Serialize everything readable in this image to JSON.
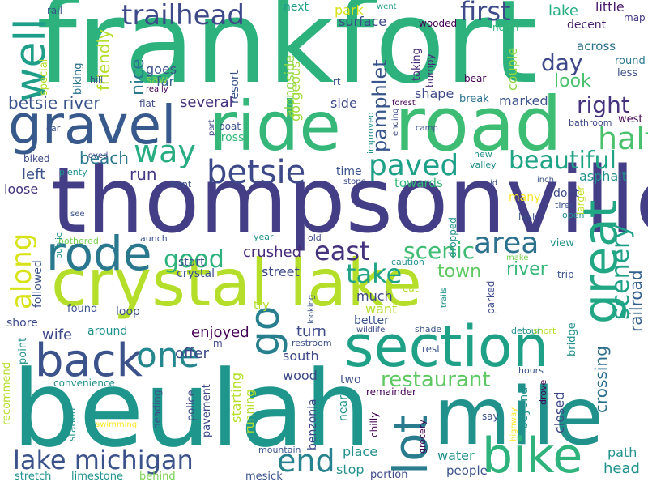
{
  "words": [
    {
      "text": "frankfort",
      "color": "#2db27d"
    },
    {
      "text": "thompsonville",
      "color": "#433e85"
    },
    {
      "text": "crystal lake",
      "color": "#b5de2b"
    },
    {
      "text": "beulah",
      "color": "#1f968b"
    },
    {
      "text": "road",
      "color": "#3dbc74"
    },
    {
      "text": "ride",
      "color": "#35b779"
    },
    {
      "text": "mile",
      "color": "#21918c"
    },
    {
      "text": "section",
      "color": "#1fa187"
    },
    {
      "text": "gravel",
      "color": "#38598c"
    },
    {
      "text": "rode",
      "color": "#2a788e"
    },
    {
      "text": "great",
      "color": "#22a785"
    },
    {
      "text": "bike",
      "color": "#2eb37c"
    },
    {
      "text": "back",
      "color": "#3b528b"
    },
    {
      "text": "one",
      "color": "#24878e"
    },
    {
      "text": "lot",
      "color": "#287c8e"
    },
    {
      "text": "go",
      "color": "#277f8e"
    },
    {
      "text": "way",
      "color": "#27ad81"
    },
    {
      "text": "well",
      "color": "#1f9e89"
    },
    {
      "text": "betsie",
      "color": "#3e4989"
    },
    {
      "text": "along",
      "color": "#d8e219"
    },
    {
      "text": "half",
      "color": "#4ac16d"
    },
    {
      "text": "trailhead",
      "color": "#3e4989"
    },
    {
      "text": "first",
      "color": "#3e4a89"
    },
    {
      "text": "lake michigan",
      "color": "#3b528b"
    },
    {
      "text": "end",
      "color": "#26828e"
    },
    {
      "text": "paved",
      "color": "#1fa088"
    },
    {
      "text": "beautiful",
      "color": "#20a486"
    },
    {
      "text": "area",
      "color": "#2c718e"
    },
    {
      "text": "east",
      "color": "#46337e"
    },
    {
      "text": "good",
      "color": "#2db27d"
    },
    {
      "text": "take",
      "color": "#20a386"
    },
    {
      "text": "restaurant",
      "color": "#5ec962"
    },
    {
      "text": "scenery",
      "color": "#1fa187"
    },
    {
      "text": "scenic",
      "color": "#3fbc73"
    },
    {
      "text": "day",
      "color": "#3f4889"
    },
    {
      "text": "right",
      "color": "#46327e"
    },
    {
      "text": "beach",
      "color": "#2a778e"
    },
    {
      "text": "railroad",
      "color": "#34618d"
    },
    {
      "text": "crossing",
      "color": "#2d708e"
    },
    {
      "text": "pamphlet",
      "color": "#39568c"
    },
    {
      "text": "betsie river",
      "color": "#3a548c"
    },
    {
      "text": "run",
      "color": "#443a83"
    },
    {
      "text": "left",
      "color": "#3b528b"
    },
    {
      "text": "loose",
      "color": "#46337e"
    },
    {
      "text": "town",
      "color": "#5ec962"
    },
    {
      "text": "river",
      "color": "#37b878"
    },
    {
      "text": "look",
      "color": "#4ac16d"
    },
    {
      "text": "lake",
      "color": "#26ad81"
    },
    {
      "text": "nice",
      "color": "#2a788e"
    },
    {
      "text": "friendly",
      "color": "#b5de2b"
    },
    {
      "text": "alongside",
      "color": "#8fd744"
    },
    {
      "text": "gorgeous",
      "color": "#a0da39"
    },
    {
      "text": "several",
      "color": "#46327e"
    },
    {
      "text": "marked",
      "color": "#3b528b"
    },
    {
      "text": "next",
      "color": "#1f9e89"
    },
    {
      "text": "park",
      "color": "#d8e219"
    },
    {
      "text": "surface",
      "color": "#3e4989"
    },
    {
      "text": "wooded",
      "color": "#440154"
    },
    {
      "text": "little",
      "color": "#481a6c"
    },
    {
      "text": "decent",
      "color": "#481f70"
    },
    {
      "text": "across",
      "color": "#2c728e"
    },
    {
      "text": "map",
      "color": "#453781"
    },
    {
      "text": "round",
      "color": "#2a788e"
    },
    {
      "text": "less",
      "color": "#3b528b"
    },
    {
      "text": "went",
      "color": "#1f9e89"
    },
    {
      "text": "rail",
      "color": "#3b528b"
    },
    {
      "text": "north",
      "color": "#35b779"
    },
    {
      "text": "bear",
      "color": "#440154"
    },
    {
      "text": "couple",
      "color": "#8fd744"
    },
    {
      "text": "taking",
      "color": "#482878"
    },
    {
      "text": "bumpy",
      "color": "#482878"
    },
    {
      "text": "goes",
      "color": "#3b528b"
    },
    {
      "text": "far",
      "color": "#33638d"
    },
    {
      "text": "saw",
      "color": "#7ad151"
    },
    {
      "text": "resort",
      "color": "#3b528b"
    },
    {
      "text": "shape",
      "color": "#3e4989"
    },
    {
      "text": "break",
      "color": "#2c728e"
    },
    {
      "text": "side",
      "color": "#3e4989"
    },
    {
      "text": "rt",
      "color": "#3b528b"
    },
    {
      "text": "forest",
      "color": "#440154"
    },
    {
      "text": "camp",
      "color": "#3b528b"
    },
    {
      "text": "bathroom",
      "color": "#3e4989"
    },
    {
      "text": "west",
      "color": "#440154"
    },
    {
      "text": "boat",
      "color": "#3b528b"
    },
    {
      "text": "cross",
      "color": "#35b779"
    },
    {
      "text": "flat",
      "color": "#3e4989"
    },
    {
      "text": "really",
      "color": "#440154"
    },
    {
      "text": "hill",
      "color": "#3b528b"
    },
    {
      "text": "biking",
      "color": "#2c728e"
    },
    {
      "text": "special",
      "color": "#b5de2b"
    },
    {
      "text": "car",
      "color": "#3b528b"
    },
    {
      "text": "part",
      "color": "#3e4989"
    },
    {
      "text": "improved",
      "color": "#21918c"
    },
    {
      "text": "ending",
      "color": "#3e4989"
    },
    {
      "text": "biked",
      "color": "#3e4989"
    },
    {
      "text": "plenty",
      "color": "#21918c"
    },
    {
      "text": "loved",
      "color": "#3e4989"
    },
    {
      "text": "time",
      "color": "#3b528b"
    },
    {
      "text": "stone",
      "color": "#3e4989"
    },
    {
      "text": "new",
      "color": "#21918c"
    },
    {
      "text": "valley",
      "color": "#21918c"
    },
    {
      "text": "inch",
      "color": "#3b528b"
    },
    {
      "text": "id",
      "color": "#3b528b"
    },
    {
      "text": "front",
      "color": "#3b528b"
    },
    {
      "text": "towards",
      "color": "#35b779"
    },
    {
      "text": "asphalt",
      "color": "#21918c"
    },
    {
      "text": "dont",
      "color": "#3e4989"
    },
    {
      "text": "many",
      "color": "#fde725"
    },
    {
      "text": "tires",
      "color": "#3b528b"
    },
    {
      "text": "last",
      "color": "#3b528b"
    },
    {
      "text": "open",
      "color": "#21918c"
    },
    {
      "text": "larger",
      "color": "#c2df23"
    },
    {
      "text": "crushed",
      "color": "#482878"
    },
    {
      "text": "street",
      "color": "#3e4989"
    },
    {
      "text": "crystal",
      "color": "#3b528b"
    },
    {
      "text": "start",
      "color": "#3b528b"
    },
    {
      "text": "launch",
      "color": "#3b528b"
    },
    {
      "text": "bothered",
      "color": "#7ad151"
    },
    {
      "text": "public",
      "color": "#21918c"
    },
    {
      "text": "see",
      "color": "#3b528b"
    },
    {
      "text": "followed",
      "color": "#3b528b"
    },
    {
      "text": "shore",
      "color": "#3e4989"
    },
    {
      "text": "found",
      "color": "#3b528b"
    },
    {
      "text": "loop",
      "color": "#3b528b"
    },
    {
      "text": "wife",
      "color": "#3e4989"
    },
    {
      "text": "around",
      "color": "#21918c"
    },
    {
      "text": "enjoyed",
      "color": "#440154"
    },
    {
      "text": "year",
      "color": "#21918c"
    },
    {
      "text": "old",
      "color": "#3e4989"
    },
    {
      "text": "dropped",
      "color": "#21918c"
    },
    {
      "text": "caution",
      "color": "#21918c"
    },
    {
      "text": "make",
      "color": "#7ad151"
    },
    {
      "text": "view",
      "color": "#21918c"
    },
    {
      "text": "trip",
      "color": "#3b528b"
    },
    {
      "text": "much",
      "color": "#3e4989"
    },
    {
      "text": "want",
      "color": "#b5de2b"
    },
    {
      "text": "try",
      "color": "#b5de2b"
    },
    {
      "text": "better",
      "color": "#3b528b"
    },
    {
      "text": "looking",
      "color": "#3b528b"
    },
    {
      "text": "eat",
      "color": "#b5de2b"
    },
    {
      "text": "trails",
      "color": "#21918c"
    },
    {
      "text": "parked",
      "color": "#3e4989"
    },
    {
      "text": "wildlife",
      "color": "#3e4989"
    },
    {
      "text": "shade",
      "color": "#3b528b"
    },
    {
      "text": "detour",
      "color": "#21918c"
    },
    {
      "text": "short",
      "color": "#b5de2b"
    },
    {
      "text": "bridge",
      "color": "#21918c"
    },
    {
      "text": "turn",
      "color": "#3e4989"
    },
    {
      "text": "restroom",
      "color": "#3b528b"
    },
    {
      "text": "rest",
      "color": "#3b528b"
    },
    {
      "text": "south",
      "color": "#3e4989"
    },
    {
      "text": "m",
      "color": "#3e4989"
    },
    {
      "text": "offer",
      "color": "#3e4989"
    },
    {
      "text": "wood",
      "color": "#3e4989"
    },
    {
      "text": "two",
      "color": "#3b528b"
    },
    {
      "text": "remainder",
      "color": "#440154"
    },
    {
      "text": "hours",
      "color": "#3b528b"
    },
    {
      "text": "drove",
      "color": "#440154"
    },
    {
      "text": "closed",
      "color": "#3e4989"
    },
    {
      "text": "beyond",
      "color": "#21918c"
    },
    {
      "text": "recommend",
      "color": "#b5de2b"
    },
    {
      "text": "point",
      "color": "#21918c"
    },
    {
      "text": "convenience",
      "color": "#21918c"
    },
    {
      "text": "station",
      "color": "#21918c"
    },
    {
      "text": "swimming",
      "color": "#fde725"
    },
    {
      "text": "heading",
      "color": "#3b528b"
    },
    {
      "text": "police",
      "color": "#3e4989"
    },
    {
      "text": "pavement",
      "color": "#3e4989"
    },
    {
      "text": "starting",
      "color": "#b5de2b"
    },
    {
      "text": "running",
      "color": "#b5de2b"
    },
    {
      "text": "benzonia",
      "color": "#3e4989"
    },
    {
      "text": "near",
      "color": "#21918c"
    },
    {
      "text": "chilly",
      "color": "#440154"
    },
    {
      "text": "grocery",
      "color": "#440154"
    },
    {
      "text": "highway",
      "color": "#fde725"
    },
    {
      "text": "say",
      "color": "#3b528b"
    },
    {
      "text": "place",
      "color": "#21918c"
    },
    {
      "text": "water",
      "color": "#21918c"
    },
    {
      "text": "path",
      "color": "#21918c"
    },
    {
      "text": "head",
      "color": "#21918c"
    },
    {
      "text": "stop",
      "color": "#21918c"
    },
    {
      "text": "portion",
      "color": "#3e4989"
    },
    {
      "text": "people",
      "color": "#3b528b"
    },
    {
      "text": "mountain",
      "color": "#3b528b"
    },
    {
      "text": "stretch",
      "color": "#21918c"
    },
    {
      "text": "limestone",
      "color": "#21918c"
    },
    {
      "text": "behind",
      "color": "#7ad151"
    },
    {
      "text": "mesick",
      "color": "#3b528b"
    }
  ]
}
